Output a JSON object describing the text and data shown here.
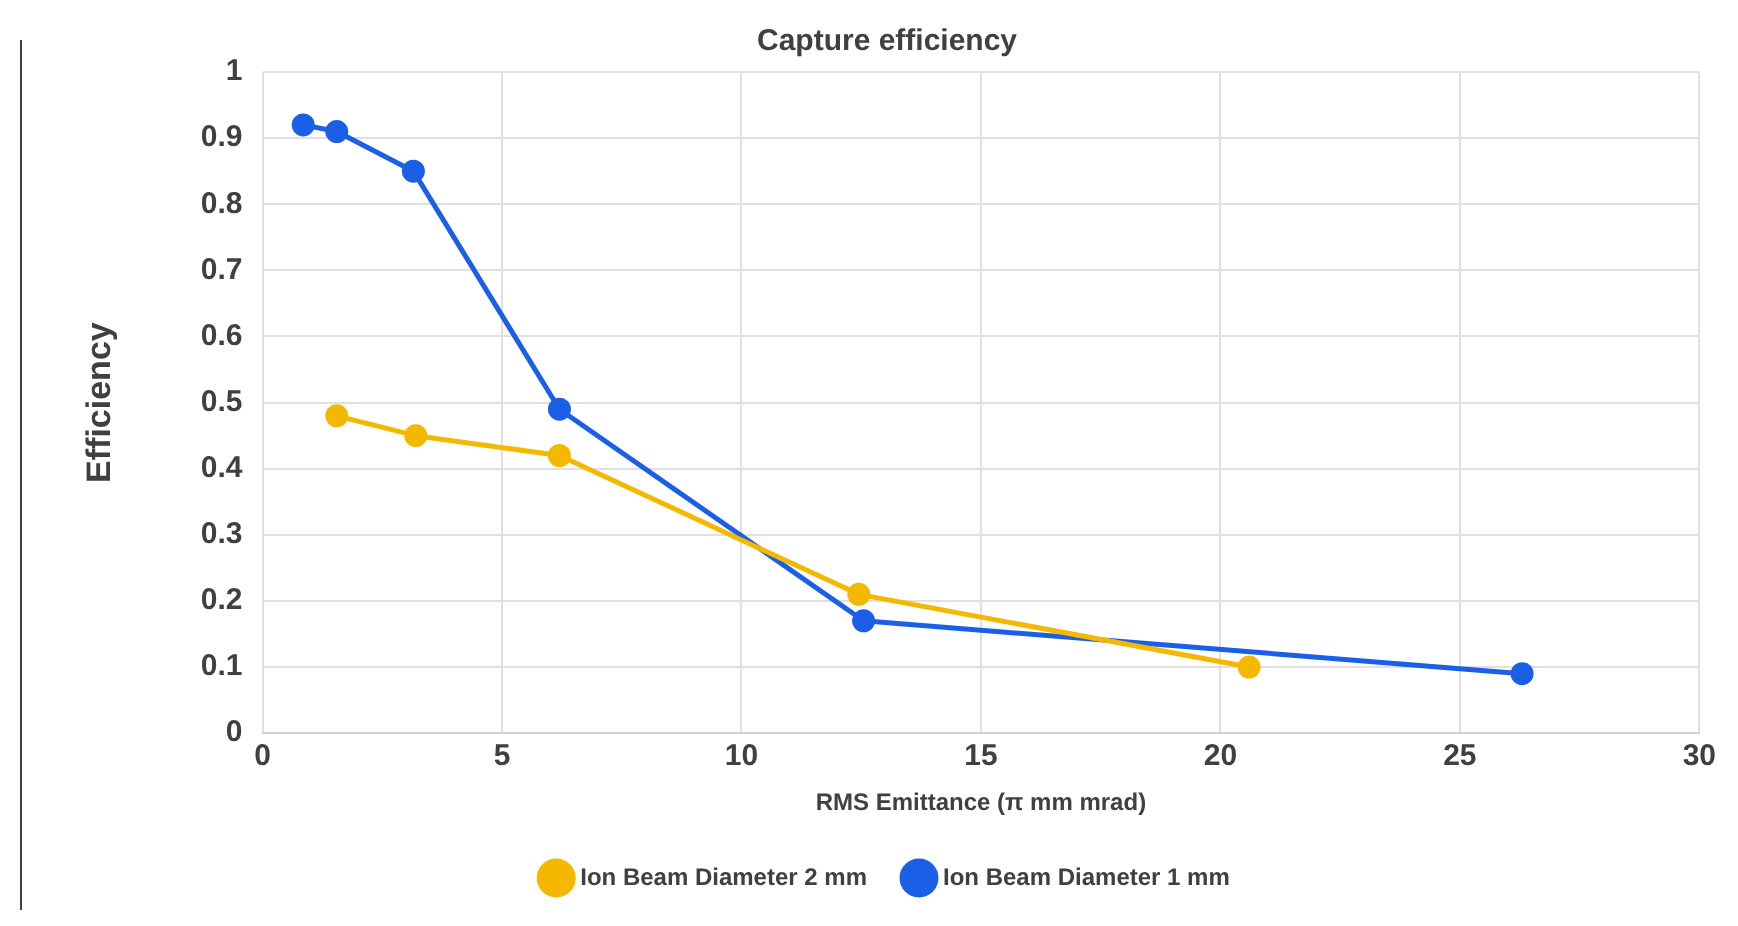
{
  "chart_data": {
    "type": "line",
    "title": "Capture efficiency",
    "xlabel": "RMS Emittance (π mm mrad)",
    "ylabel": "Efficiency",
    "series": [
      {
        "name": "Ion Beam Diameter 2 mm",
        "color": "#f5b800",
        "x": [
          1.55,
          3.2,
          6.2,
          12.45,
          20.6
        ],
        "values": [
          0.48,
          0.45,
          0.42,
          0.21,
          0.1
        ]
      },
      {
        "name": "Ion Beam Diameter 1 mm",
        "color": "#1a5fe6",
        "x": [
          0.85,
          1.55,
          3.15,
          6.2,
          12.55,
          26.3
        ],
        "values": [
          0.92,
          0.91,
          0.85,
          0.49,
          0.17,
          0.09
        ]
      }
    ],
    "xlim": [
      0,
      30
    ],
    "xticks": [
      0,
      5,
      10,
      15,
      20,
      25,
      30
    ],
    "ylim": [
      0,
      1
    ],
    "yticks": [
      0,
      0.1,
      0.2,
      0.3,
      0.4,
      0.5,
      0.6,
      0.7,
      0.8,
      0.9,
      1
    ],
    "grid": true,
    "legend": "bottom",
    "marker": "circle",
    "line_style": "solid"
  }
}
